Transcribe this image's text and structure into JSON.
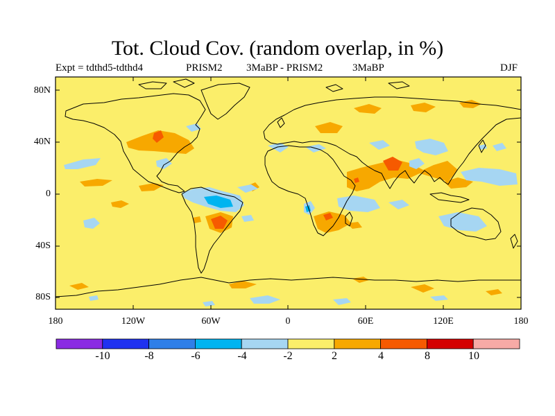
{
  "title": "Tot. Cloud Cov. (random overlap, in %)",
  "subtitle": {
    "experiment": "Expt = tdthd5-tdthd4",
    "left_model": "PRISM2",
    "comparison": "3MaBP - PRISM2",
    "right_label": "3MaBP",
    "season": "DJF"
  },
  "lat_ticks": [
    "80N",
    "40N",
    "0",
    "40S",
    "80S"
  ],
  "lon_ticks": [
    "180",
    "120W",
    "60W",
    "0",
    "60E",
    "120E",
    "180"
  ],
  "colorbar": {
    "labels": [
      "-10",
      "-8",
      "-6",
      "-4",
      "-2",
      "2",
      "4",
      "8",
      "10"
    ],
    "colors": [
      "#8a2be2",
      "#1f32f0",
      "#2f7fe8",
      "#00b4f0",
      "#a6d6f2",
      "#fbee6a",
      "#f7a800",
      "#f65a00",
      "#d40000",
      "#f7aaa6"
    ]
  },
  "map": {
    "background_color": "#fbee6a",
    "positive_color": "#f7a800",
    "strong_positive_color": "#f65a00",
    "negative_color": "#a6d6f2",
    "moderate_negative_color": "#00b4f0"
  }
}
